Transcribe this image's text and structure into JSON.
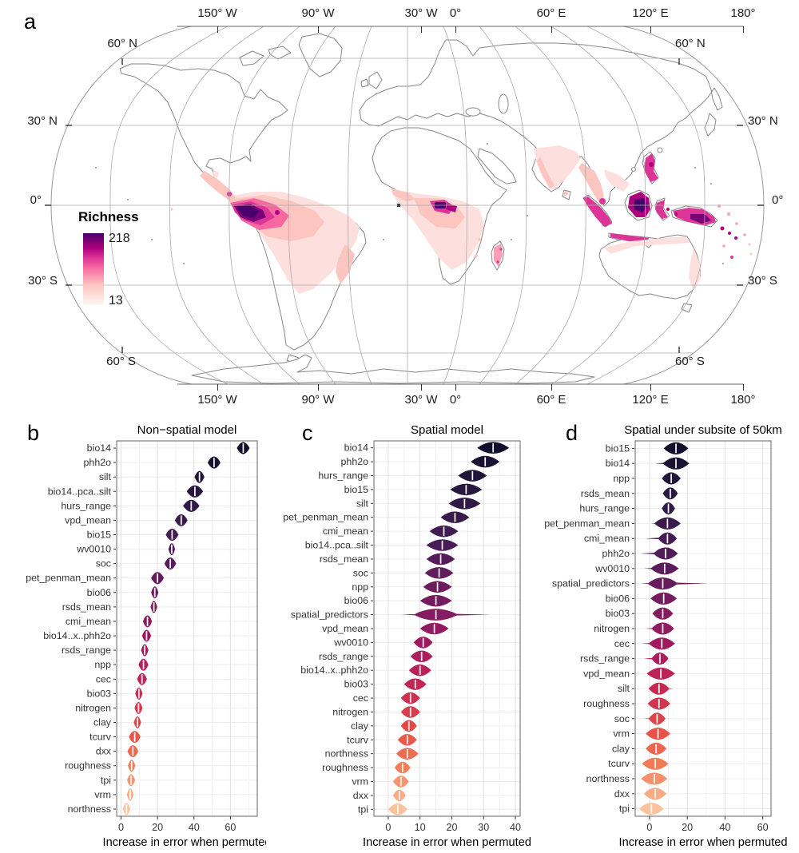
{
  "panels": {
    "a": "a",
    "b": "b",
    "c": "c",
    "d": "d"
  },
  "map": {
    "legend": {
      "title": "Richness",
      "max": "218",
      "min": "13"
    },
    "palette": [
      "#fff7f3",
      "#fde0dd",
      "#fcc5c0",
      "#fa9fb5",
      "#f768a1",
      "#dd3497",
      "#ae017e",
      "#7a0177",
      "#49006a"
    ],
    "coast_color": "#878787",
    "graticule_color": "#ababab",
    "lon_labels": [
      "150° W",
      "90° W",
      "30° W",
      "0°",
      "60° E",
      "120° E",
      "180°"
    ],
    "lat_labels": [
      "60° N",
      "30° N",
      "0°",
      "30° S",
      "60° S"
    ]
  },
  "violin_palette": [
    [
      0,
      "#120f2d"
    ],
    [
      0.14,
      "#2b1a42"
    ],
    [
      0.28,
      "#4c1d58"
    ],
    [
      0.42,
      "#761b60"
    ],
    [
      0.54,
      "#a01a60"
    ],
    [
      0.66,
      "#c72652"
    ],
    [
      0.78,
      "#e54c47"
    ],
    [
      0.88,
      "#f37d56"
    ],
    [
      1,
      "#fac39e"
    ]
  ],
  "chart_data": [
    {
      "type": "violin",
      "panel_label": "b",
      "title": "Non−spatial model",
      "xlabel": "Increase in error when permuted",
      "xticks": [
        0,
        20,
        40,
        60
      ],
      "minor_ticks": [
        10,
        30,
        50,
        70
      ],
      "xlim": [
        -2.4,
        74.7
      ],
      "rows": [
        {
          "label": "bio14",
          "value": 67,
          "spread": 3.5
        },
        {
          "label": "phh2o",
          "value": 51,
          "spread": 3.5
        },
        {
          "label": "silt",
          "value": 43,
          "spread": 2.7
        },
        {
          "label": "bio14..pca..silt",
          "value": 40.5,
          "spread": 4.5
        },
        {
          "label": "hurs_range",
          "value": 38.5,
          "spread": 4.5
        },
        {
          "label": "vpd_mean",
          "value": 33,
          "spread": 3.5
        },
        {
          "label": "bio15",
          "value": 28,
          "spread": 3.5
        },
        {
          "label": "wv0010",
          "value": 27.8,
          "spread": 1.8
        },
        {
          "label": "soc",
          "value": 27,
          "spread": 3.2
        },
        {
          "label": "pet_penman_mean",
          "value": 20,
          "spread": 3.5
        },
        {
          "label": "bio06",
          "value": 18.5,
          "spread": 2
        },
        {
          "label": "rsds_mean",
          "value": 18,
          "spread": 1.8
        },
        {
          "label": "cmi_mean",
          "value": 14.5,
          "spread": 2.5
        },
        {
          "label": "bio14..x..phh2o",
          "value": 14,
          "spread": 2.5
        },
        {
          "label": "rsds_range",
          "value": 13,
          "spread": 2
        },
        {
          "label": "npp",
          "value": 12.3,
          "spread": 2.7
        },
        {
          "label": "cec",
          "value": 11.5,
          "spread": 2.7
        },
        {
          "label": "bio03",
          "value": 9.8,
          "spread": 2
        },
        {
          "label": "nitrogen",
          "value": 9.6,
          "spread": 2.2
        },
        {
          "label": "clay",
          "value": 9,
          "spread": 2
        },
        {
          "label": "tcurv",
          "value": 7.5,
          "spread": 3.2
        },
        {
          "label": "dxx",
          "value": 6.5,
          "spread": 3
        },
        {
          "label": "roughness",
          "value": 5.8,
          "spread": 2
        },
        {
          "label": "tpi",
          "value": 5.5,
          "spread": 2.2
        },
        {
          "label": "vrm",
          "value": 5,
          "spread": 1.8
        },
        {
          "label": "northness",
          "value": 3,
          "spread": 2
        }
      ]
    },
    {
      "type": "violin",
      "panel_label": "c",
      "title": "Spatial model",
      "xlabel": "Increase in error when permuted",
      "xticks": [
        0,
        10,
        20,
        30,
        40
      ],
      "minor_ticks": [
        5,
        15,
        25,
        35
      ],
      "xlim": [
        -4.5,
        41.5
      ],
      "rows": [
        {
          "label": "bio14",
          "value": 33,
          "spread": 5
        },
        {
          "label": "phh2o",
          "value": 30.5,
          "spread": 4.5
        },
        {
          "label": "hurs_range",
          "value": 26.5,
          "spread": 4.5
        },
        {
          "label": "bio15",
          "value": 24.5,
          "spread": 5
        },
        {
          "label": "silt",
          "value": 24,
          "spread": 5
        },
        {
          "label": "pet_penman_mean",
          "value": 21,
          "spread": 4.5
        },
        {
          "label": "cmi_mean",
          "value": 17.5,
          "spread": 4.5
        },
        {
          "label": "bio14..pca..silt",
          "value": 17,
          "spread": 5
        },
        {
          "label": "rsds_mean",
          "value": 16.5,
          "spread": 4.5
        },
        {
          "label": "soc",
          "value": 16,
          "spread": 4.5
        },
        {
          "label": "npp",
          "value": 15.5,
          "spread": 4.5
        },
        {
          "label": "bio06",
          "value": 15,
          "spread": 5
        },
        {
          "label": "spatial_predictors",
          "value": 15,
          "spread": 7,
          "tail_min": 4,
          "tail_max": 32
        },
        {
          "label": "vpd_mean",
          "value": 14.5,
          "spread": 4.5
        },
        {
          "label": "wv0010",
          "value": 11,
          "spread": 3
        },
        {
          "label": "rsds_range",
          "value": 10.5,
          "spread": 3.5
        },
        {
          "label": "bio14..x..phh2o",
          "value": 10,
          "spread": 3.5
        },
        {
          "label": "bio03",
          "value": 8.5,
          "spread": 3.5
        },
        {
          "label": "cec",
          "value": 7,
          "spread": 3
        },
        {
          "label": "nitrogen",
          "value": 7,
          "spread": 3
        },
        {
          "label": "clay",
          "value": 6.5,
          "spread": 2.5
        },
        {
          "label": "tcurv",
          "value": 6,
          "spread": 3
        },
        {
          "label": "northness",
          "value": 6,
          "spread": 3.5
        },
        {
          "label": "roughness",
          "value": 4.5,
          "spread": 2.5
        },
        {
          "label": "vrm",
          "value": 4,
          "spread": 2.5
        },
        {
          "label": "dxx",
          "value": 3.5,
          "spread": 2
        },
        {
          "label": "tpi",
          "value": 3,
          "spread": 3
        }
      ]
    },
    {
      "type": "violin",
      "panel_label": "d",
      "title": "Spatial under subsite of 50km",
      "xlabel": "Increase in error when permuted",
      "xticks": [
        0,
        20,
        40,
        60
      ],
      "minor_ticks": [
        10,
        30,
        50
      ],
      "xlim": [
        -7.6,
        64.4
      ],
      "rows": [
        {
          "label": "bio15",
          "value": 14,
          "spread": 6.5
        },
        {
          "label": "bio14",
          "value": 14,
          "spread": 7,
          "tail_min": 3
        },
        {
          "label": "npp",
          "value": 11.5,
          "spread": 5
        },
        {
          "label": "rsds_mean",
          "value": 11,
          "spread": 4
        },
        {
          "label": "hurs_range",
          "value": 10,
          "spread": 3.5
        },
        {
          "label": "pet_penman_mean",
          "value": 9.5,
          "spread": 7,
          "tail_min": 1
        },
        {
          "label": "cmi_mean",
          "value": 9.5,
          "spread": 5,
          "tail_min": -2
        },
        {
          "label": "phh2o",
          "value": 8.5,
          "spread": 6.5,
          "tail_min": -5
        },
        {
          "label": "wv0010",
          "value": 8,
          "spread": 7.5,
          "tail_min": -3
        },
        {
          "label": "spatial_predictors",
          "value": 7,
          "spread": 8,
          "tail_min": -4.5,
          "tail_max": 31
        },
        {
          "label": "bio06",
          "value": 7.5,
          "spread": 7
        },
        {
          "label": "bio03",
          "value": 7,
          "spread": 5.5
        },
        {
          "label": "nitrogen",
          "value": 7,
          "spread": 6,
          "tail_min": -2
        },
        {
          "label": "cec",
          "value": 6.5,
          "spread": 7,
          "tail_min": -4.5
        },
        {
          "label": "rsds_range",
          "value": 5.5,
          "spread": 4.5,
          "tail_min": -3
        },
        {
          "label": "vpd_mean",
          "value": 6,
          "spread": 7.5
        },
        {
          "label": "silt",
          "value": 5,
          "spread": 5.5,
          "tail_max": 12.5
        },
        {
          "label": "roughness",
          "value": 5,
          "spread": 6
        },
        {
          "label": "soc",
          "value": 4,
          "spread": 4.5,
          "tail_min": -3
        },
        {
          "label": "vrm",
          "value": 4.5,
          "spread": 6.5
        },
        {
          "label": "clay",
          "value": 3.5,
          "spread": 5.5
        },
        {
          "label": "tcurv",
          "value": 3,
          "spread": 7
        },
        {
          "label": "northness",
          "value": 2.5,
          "spread": 7
        },
        {
          "label": "dxx",
          "value": 3,
          "spread": 6
        },
        {
          "label": "tpi",
          "value": 1,
          "spread": 6.5
        }
      ]
    }
  ]
}
